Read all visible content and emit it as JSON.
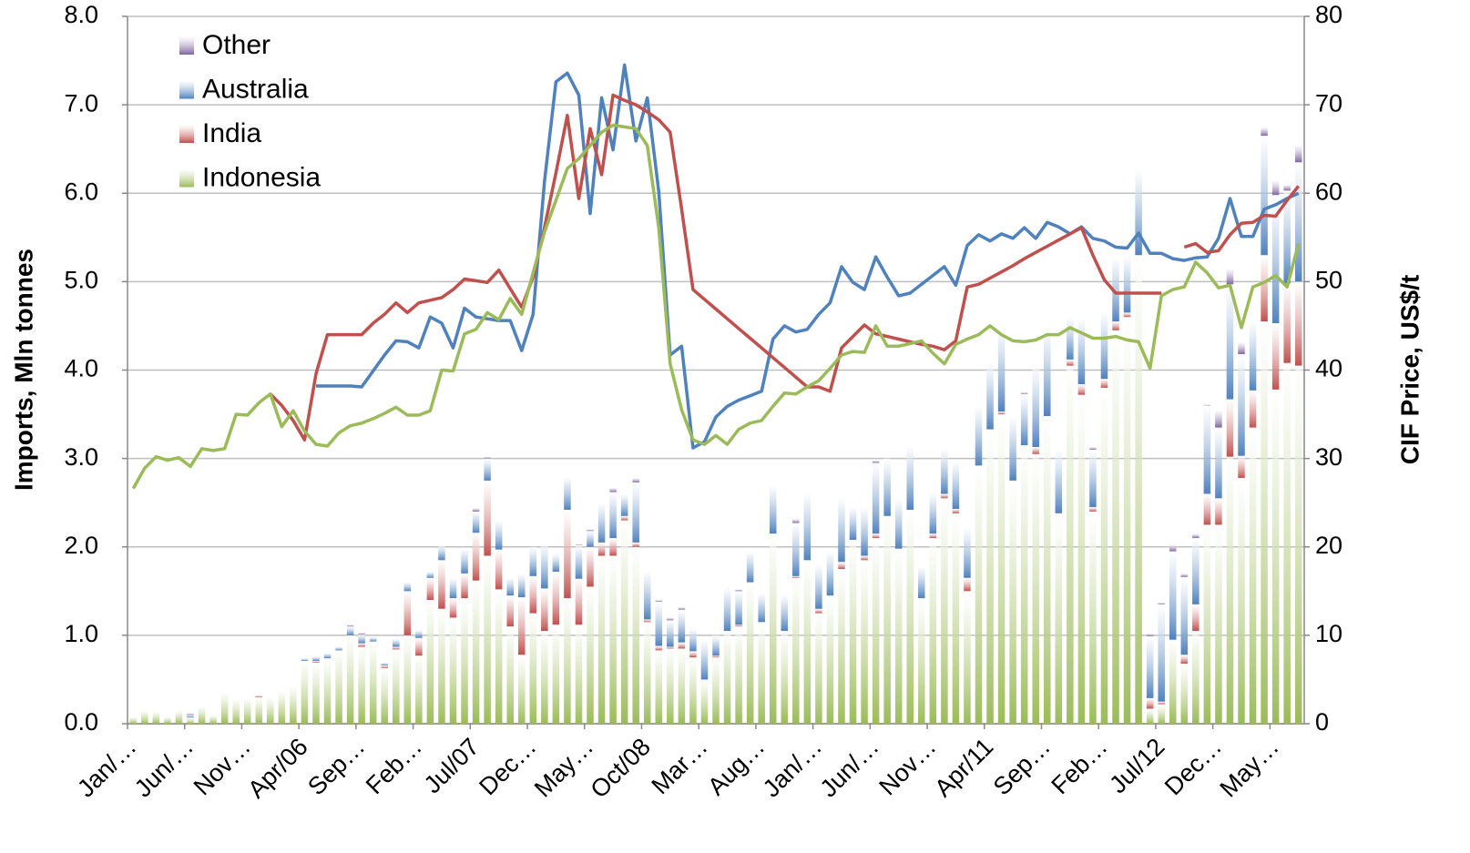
{
  "chart_data": {
    "type": "combo",
    "y_label": "Imports, Mln tonnes",
    "y2_label": "CIF Price, US$/t",
    "ylim": [
      0,
      8
    ],
    "yticks": [
      {
        "value": 0,
        "label": "0.0"
      },
      {
        "value": 1,
        "label": "1.0"
      },
      {
        "value": 2,
        "label": "2.0"
      },
      {
        "value": 3,
        "label": "3.0"
      },
      {
        "value": 4,
        "label": "4.0"
      },
      {
        "value": 5,
        "label": "5.0"
      },
      {
        "value": 6,
        "label": "6.0"
      },
      {
        "value": 7,
        "label": "7.0"
      },
      {
        "value": 8,
        "label": "8.0"
      }
    ],
    "y2lim": [
      0,
      80
    ],
    "y2ticks": [
      0,
      10,
      20,
      30,
      40,
      50,
      60,
      70,
      80
    ],
    "grid": true,
    "legend": "top-left",
    "categories": [
      "Jan/…",
      null,
      null,
      null,
      null,
      "Jun/…",
      null,
      null,
      null,
      null,
      "Nov…",
      null,
      null,
      null,
      null,
      "Apr/06",
      null,
      null,
      null,
      null,
      "Sep…",
      null,
      null,
      null,
      null,
      "Feb…",
      null,
      null,
      null,
      null,
      "Jul/07",
      null,
      null,
      null,
      null,
      "Dec…",
      null,
      null,
      null,
      null,
      "May…",
      null,
      null,
      null,
      null,
      "Oct/08",
      null,
      null,
      null,
      null,
      "Mar…",
      null,
      null,
      null,
      null,
      "Aug…",
      null,
      null,
      null,
      null,
      "Jan/…",
      null,
      null,
      null,
      null,
      "Jun/…",
      null,
      null,
      null,
      null,
      "Nov…",
      null,
      null,
      null,
      null,
      "Apr/11",
      null,
      null,
      null,
      null,
      "Sep…",
      null,
      null,
      null,
      null,
      "Feb…",
      null,
      null,
      null,
      null,
      "Jul/12",
      null,
      null,
      null,
      null,
      "Dec…",
      null,
      null,
      null,
      null,
      "May…",
      null,
      null
    ],
    "series": [
      {
        "name": "Indonesia",
        "color": "#9bbb59",
        "values": [
          0.08,
          0.15,
          0.14,
          0.08,
          0.15,
          0.07,
          0.2,
          0.1,
          0.36,
          0.28,
          0.29,
          0.3,
          0.3,
          0.38,
          0.43,
          0.71,
          0.69,
          0.74,
          0.83,
          1.0,
          0.87,
          0.93,
          0.63,
          0.84,
          1.0,
          0.77,
          1.4,
          1.3,
          1.2,
          1.42,
          1.62,
          1.9,
          1.52,
          1.1,
          0.78,
          1.25,
          1.05,
          1.12,
          1.42,
          1.12,
          1.55,
          1.9,
          1.9,
          2.3,
          2.0,
          1.15,
          0.83,
          0.85,
          0.85,
          0.75,
          0.5,
          0.75,
          1.05,
          1.1,
          1.6,
          1.15,
          2.15,
          1.05,
          1.65,
          1.85,
          1.25,
          1.45,
          1.75,
          2.08,
          1.85,
          2.1,
          2.35,
          1.98,
          2.42,
          1.42,
          2.1,
          2.55,
          2.38,
          1.5,
          2.92,
          3.33,
          3.5,
          2.75,
          3.15,
          3.05,
          3.48,
          2.38,
          4.05,
          3.72,
          2.4,
          3.8,
          4.45,
          4.6,
          5.3,
          0.17,
          0.22,
          0.95,
          0.68,
          1.05,
          2.25,
          2.25,
          3.02,
          2.78,
          3.35,
          4.55,
          3.78,
          4.08,
          4.05
        ]
      },
      {
        "name": "India",
        "color": "#c0504d",
        "values": [
          0,
          0,
          0,
          0,
          0,
          0,
          0,
          0,
          0,
          0,
          0,
          0.02,
          0,
          0,
          0,
          0,
          0.02,
          0,
          0,
          0,
          0.04,
          0,
          0.03,
          0.03,
          0.5,
          0.2,
          0.25,
          0.55,
          0.22,
          0.28,
          0.54,
          0.85,
          0.45,
          0.35,
          0.65,
          0.42,
          0.48,
          0.6,
          1.0,
          0.52,
          0.45,
          0.15,
          0.2,
          0.05,
          0.05,
          0.03,
          0.05,
          0.02,
          0.07,
          0.07,
          0,
          0.02,
          0,
          0.02,
          0,
          0,
          0,
          0,
          0.02,
          0,
          0.05,
          0,
          0.08,
          0,
          0.05,
          0.05,
          0,
          0,
          0,
          0,
          0.05,
          0.05,
          0.05,
          0.15,
          0,
          0,
          0.03,
          0,
          0,
          0.08,
          0,
          0,
          0.07,
          0.12,
          0.05,
          0.1,
          0.1,
          0.05,
          0,
          0.12,
          0.03,
          0,
          0.1,
          0.3,
          0.35,
          0.3,
          0.65,
          0.25,
          0.42,
          0.75,
          0.75,
          0.9,
          0.95
        ]
      },
      {
        "name": "Australia",
        "color": "#4f81bd",
        "values": [
          0,
          0,
          0,
          0,
          0,
          0.03,
          0,
          0,
          0,
          0,
          0,
          0,
          0,
          0,
          0,
          0.03,
          0.05,
          0.06,
          0.04,
          0.1,
          0.1,
          0.05,
          0.03,
          0.09,
          0.1,
          0.09,
          0.07,
          0.17,
          0.23,
          0.28,
          0.24,
          0.25,
          0.33,
          0.2,
          0.27,
          0.33,
          0.52,
          0.2,
          0.38,
          0.38,
          0.18,
          0.45,
          0.52,
          0.25,
          0.68,
          0.55,
          0.5,
          0.3,
          0.37,
          0.26,
          0.45,
          0.23,
          0.5,
          0.38,
          0.35,
          0.33,
          0.55,
          0.42,
          0.6,
          0.77,
          0.5,
          0.5,
          0.74,
          0.37,
          0.55,
          0.8,
          0.65,
          0.57,
          0.73,
          0.36,
          0.47,
          0.52,
          0.55,
          0.57,
          0.68,
          0.75,
          0.97,
          0.73,
          0.58,
          0.92,
          1.02,
          0.72,
          0.48,
          0.76,
          0.65,
          0.77,
          0.73,
          0.65,
          0.98,
          0.7,
          1.1,
          1.0,
          0.88,
          0.75,
          1.0,
          0.8,
          1.3,
          1.15,
          0.79,
          1.35,
          1.45,
          1.05,
          1.35
        ]
      },
      {
        "name": "Other",
        "color": "#8064a2",
        "values": [
          0,
          0,
          0,
          0,
          0,
          0.02,
          0,
          0,
          0,
          0,
          0,
          0,
          0,
          0,
          0,
          0,
          0,
          0,
          0,
          0.02,
          0.02,
          0,
          0,
          0,
          0,
          0,
          0,
          0,
          0,
          0,
          0.04,
          0.02,
          0,
          0,
          0,
          0,
          0,
          0,
          0,
          0.01,
          0.02,
          0,
          0.05,
          0,
          0.05,
          0,
          0.02,
          0.03,
          0.03,
          0,
          0,
          0,
          0,
          0.02,
          0,
          0,
          0,
          0,
          0.05,
          0,
          0,
          0,
          0,
          0,
          0,
          0.03,
          0,
          0,
          0,
          0,
          0,
          0,
          0,
          0,
          0,
          0,
          0,
          0,
          0.02,
          0,
          0,
          0,
          0,
          0,
          0.03,
          0,
          0,
          0,
          0,
          0.03,
          0.02,
          0.08,
          0.04,
          0.05,
          0.01,
          0.2,
          0.18,
          0.14,
          0,
          0.1,
          0.17,
          0.07,
          0.2
        ]
      }
    ],
    "lines": [
      {
        "color": "#4f81bd",
        "axis": "y2",
        "values": [
          null,
          null,
          null,
          null,
          null,
          null,
          null,
          null,
          null,
          null,
          null,
          null,
          null,
          null,
          null,
          null,
          38.2,
          38.2,
          38.2,
          38.2,
          38.1,
          39.9,
          41.7,
          43.3,
          43.2,
          42.5,
          46.0,
          45.3,
          42.5,
          47.0,
          46.0,
          45.8,
          45.6,
          45.6,
          42.2,
          46.3,
          61.3,
          72.6,
          73.6,
          71.1,
          57.7,
          70.8,
          64.9,
          74.5,
          65.9,
          70.8,
          60.2,
          41.7,
          42.7,
          31.2,
          31.9,
          34.7,
          35.9,
          36.6,
          37.1,
          37.6,
          43.5,
          45.0,
          44.3,
          44.6,
          46.3,
          47.6,
          51.7,
          49.9,
          49.1,
          52.8,
          50.5,
          48.4,
          48.7,
          49.7,
          50.7,
          51.7,
          49.6,
          54.1,
          55.3,
          54.6,
          55.4,
          54.9,
          56.1,
          54.9,
          56.7,
          56.2,
          55.4,
          56.2,
          54.9,
          54.6,
          53.9,
          53.8,
          55.5,
          53.2,
          53.2,
          52.6,
          52.4,
          52.7,
          52.8,
          54.9,
          59.4,
          55.1,
          55.1,
          58.2,
          58.7,
          59.4,
          60.0
        ]
      },
      {
        "color": "#c0504d",
        "axis": "y2",
        "values": [
          null,
          null,
          null,
          null,
          null,
          null,
          null,
          null,
          null,
          null,
          null,
          null,
          37.3,
          36.0,
          34.3,
          32.1,
          39.6,
          44.0,
          44.0,
          44.0,
          44.0,
          45.3,
          46.3,
          47.6,
          46.5,
          47.6,
          47.9,
          48.2,
          49.1,
          50.3,
          50.1,
          49.9,
          51.3,
          49.2,
          47.1,
          50.5,
          56.1,
          62.3,
          68.8,
          59.4,
          67.3,
          62.1,
          71.1,
          70.5,
          70.0,
          69.2,
          68.3,
          66.9,
          58.2,
          49.1,
          48.0,
          46.9,
          45.8,
          44.7,
          43.6,
          42.5,
          41.4,
          40.3,
          39.2,
          38.1,
          38.1,
          37.6,
          42.5,
          43.8,
          45.1,
          44.1,
          43.8,
          43.5,
          43.2,
          42.9,
          42.7,
          42.3,
          43.3,
          49.4,
          49.7,
          50.4,
          51.1,
          51.8,
          52.6,
          53.3,
          54.0,
          54.7,
          55.4,
          56.1,
          53.0,
          50.2,
          48.7,
          48.7,
          48.7,
          48.7,
          48.7,
          null,
          53.9,
          54.3,
          53.3,
          53.5,
          55.3,
          56.6,
          56.7,
          57.5,
          57.4,
          59.2,
          60.8
        ]
      },
      {
        "color": "#9bbb59",
        "axis": "y2",
        "values": [
          26.6,
          28.9,
          30.2,
          29.8,
          30.1,
          29.1,
          31.1,
          30.9,
          31.1,
          35.0,
          34.9,
          36.3,
          37.3,
          33.6,
          35.4,
          33.1,
          31.6,
          31.4,
          32.9,
          33.7,
          34.0,
          34.5,
          35.1,
          35.8,
          34.9,
          34.9,
          35.4,
          40.0,
          39.9,
          44.1,
          44.6,
          46.5,
          45.7,
          48.1,
          46.3,
          51.0,
          55.6,
          59.2,
          62.8,
          63.9,
          65.4,
          66.9,
          67.7,
          67.5,
          67.3,
          65.4,
          56.1,
          40.7,
          35.5,
          32.1,
          31.6,
          32.6,
          31.6,
          33.3,
          34.0,
          34.3,
          35.9,
          37.4,
          37.3,
          38.1,
          38.8,
          40.2,
          41.7,
          42.1,
          42.0,
          45.0,
          42.7,
          42.7,
          43.0,
          43.3,
          41.9,
          40.7,
          42.9,
          43.5,
          44.0,
          45.0,
          44.0,
          43.3,
          43.2,
          43.4,
          44.0,
          44.0,
          44.8,
          44.2,
          43.6,
          43.6,
          43.8,
          43.4,
          43.2,
          40.2,
          48.4,
          49.1,
          49.4,
          52.2,
          51.0,
          49.3,
          49.6,
          44.8,
          49.4,
          49.9,
          50.7,
          49.4,
          54.3
        ]
      }
    ]
  }
}
